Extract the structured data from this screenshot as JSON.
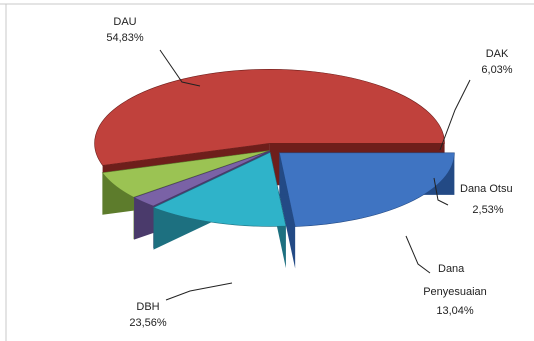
{
  "chart_data": {
    "type": "pie",
    "style": "3d-exploded",
    "start_angle_deg": 0,
    "slices": [
      {
        "name": "DAU",
        "value": 54.83,
        "label": "DAU",
        "value_label": "54,83%",
        "color": "#c0413c",
        "side_color": "#6e1e1b",
        "explode": 16
      },
      {
        "name": "DAK",
        "value": 6.03,
        "label": "DAK",
        "value_label": "6,03%",
        "color": "#9bc353",
        "side_color": "#5d7c2c",
        "explode": 3
      },
      {
        "name": "Dana Otsus",
        "value": 2.53,
        "label": "Dana Otsu",
        "value_label": "2,53%",
        "color": "#7a62a6",
        "side_color": "#4a3a6b",
        "explode": 3
      },
      {
        "name": "Dana Penyesuaian",
        "value": 13.04,
        "label_lines": [
          "Dana",
          "Penyesuaian"
        ],
        "value_label": "13,04%",
        "color": "#2fb3c9",
        "side_color": "#1d7080",
        "explode": 6
      },
      {
        "name": "DBH",
        "value": 23.56,
        "label": "DBH",
        "value_label": "23,56%",
        "color": "#3f74c2",
        "side_color": "#234a85",
        "explode": 10
      }
    ]
  }
}
